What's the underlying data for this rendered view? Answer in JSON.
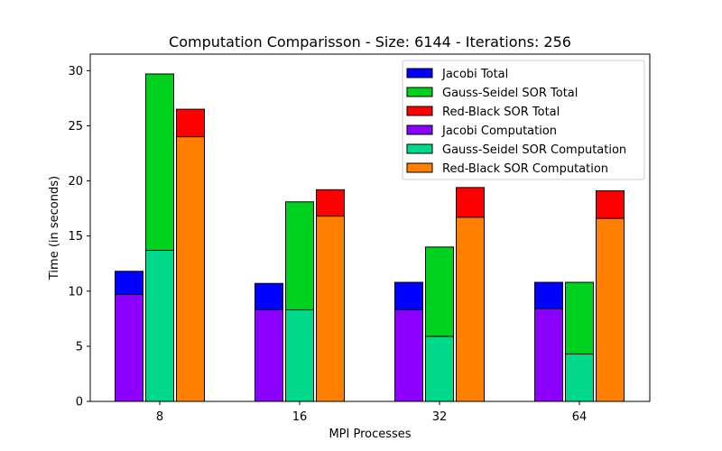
{
  "chart_data": {
    "type": "bar",
    "title": "Computation Comparisson - Size: 6144 - Iterations: 256",
    "xlabel": "MPI Processes",
    "ylabel": "Time (in seconds)",
    "categories": [
      "8",
      "16",
      "32",
      "64"
    ],
    "ylim": [
      0,
      31.5
    ],
    "yticks": [
      0,
      5,
      10,
      15,
      20,
      25,
      30
    ],
    "grid": false,
    "legend_position": "top-right",
    "series": [
      {
        "name": "Jacobi Total",
        "color": "#0000ff",
        "values": [
          11.8,
          10.7,
          10.8,
          10.8
        ]
      },
      {
        "name": "Gauss-Seidel SOR Total",
        "color": "#00d11f",
        "values": [
          29.7,
          18.1,
          14.0,
          10.8
        ]
      },
      {
        "name": "Red-Black SOR Total",
        "color": "#ff0000",
        "values": [
          26.5,
          19.2,
          19.4,
          19.1
        ]
      },
      {
        "name": "Jacobi Computation",
        "color": "#8b00ff",
        "values": [
          9.7,
          8.3,
          8.3,
          8.4
        ]
      },
      {
        "name": "Gauss-Seidel SOR Computation",
        "color": "#00d98a",
        "values": [
          13.7,
          8.3,
          5.9,
          4.3
        ]
      },
      {
        "name": "Red-Black SOR Computation",
        "color": "#ff7f00",
        "values": [
          24.0,
          16.8,
          16.7,
          16.6
        ]
      }
    ],
    "bar_groups": [
      {
        "algorithm": "Jacobi",
        "total_series": 0,
        "computation_series": 3
      },
      {
        "algorithm": "Gauss-Seidel SOR",
        "total_series": 1,
        "computation_series": 4
      },
      {
        "algorithm": "Red-Black SOR",
        "total_series": 2,
        "computation_series": 5
      }
    ]
  }
}
